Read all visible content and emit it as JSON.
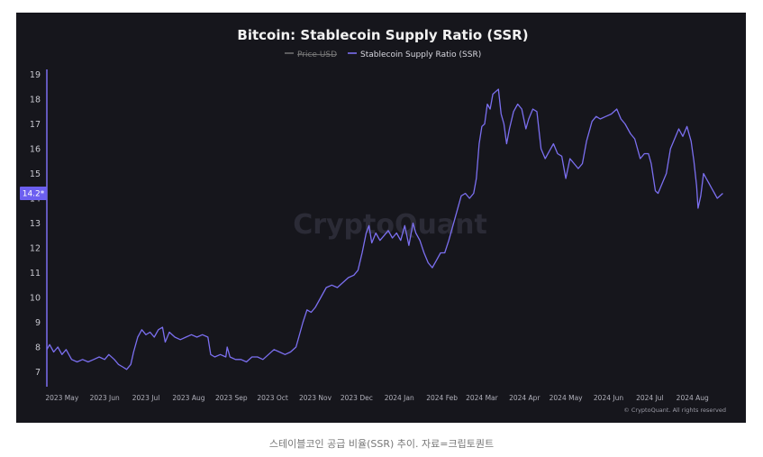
{
  "chart_data": {
    "type": "line",
    "title": "Bitcoin: Stablecoin Supply Ratio (SSR)",
    "legend": [
      {
        "name": "Price USD",
        "color": "#888888",
        "hidden": true
      },
      {
        "name": "Stablecoin Supply Ratio (SSR)",
        "color": "#7b6ff0",
        "hidden": false
      }
    ],
    "legend_position": "top-center",
    "watermark": "CryptoQuant",
    "copyright": "© CryptoQuant. All rights reserved",
    "current_value_label": "14.2*",
    "current_value": 14.2,
    "y_ticks": [
      7,
      8,
      9,
      10,
      11,
      12,
      13,
      14,
      15,
      16,
      17,
      18,
      19
    ],
    "ylim": [
      6.4,
      19.2
    ],
    "x_ticks": [
      "2023 May",
      "2023 Jun",
      "2023 Jul",
      "2023 Aug",
      "2023 Sep",
      "2023 Oct",
      "2023 Nov",
      "2023 Dec",
      "2024 Jan",
      "2024 Feb",
      "2024 Mar",
      "2024 Apr",
      "2024 May",
      "2024 Jun",
      "2024 Jul",
      "2024 Aug"
    ],
    "x_tick_dates": [
      "2023-05-01",
      "2023-06-01",
      "2023-07-01",
      "2023-08-01",
      "2023-09-01",
      "2023-10-01",
      "2023-11-01",
      "2023-12-01",
      "2024-01-01",
      "2024-02-01",
      "2024-03-01",
      "2024-04-01",
      "2024-05-01",
      "2024-06-01",
      "2024-07-01",
      "2024-08-01"
    ],
    "xlim": [
      "2023-04-20",
      "2024-08-28"
    ],
    "grid": false,
    "series": [
      {
        "name": "Stablecoin Supply Ratio (SSR)",
        "color": "#7b6ff0",
        "points": [
          [
            "2023-04-20",
            7.9
          ],
          [
            "2023-04-22",
            8.1
          ],
          [
            "2023-04-25",
            7.8
          ],
          [
            "2023-04-28",
            8.0
          ],
          [
            "2023-05-01",
            7.7
          ],
          [
            "2023-05-04",
            7.9
          ],
          [
            "2023-05-08",
            7.5
          ],
          [
            "2023-05-12",
            7.4
          ],
          [
            "2023-05-16",
            7.5
          ],
          [
            "2023-05-20",
            7.4
          ],
          [
            "2023-05-24",
            7.5
          ],
          [
            "2023-05-28",
            7.6
          ],
          [
            "2023-06-01",
            7.5
          ],
          [
            "2023-06-04",
            7.7
          ],
          [
            "2023-06-08",
            7.5
          ],
          [
            "2023-06-11",
            7.3
          ],
          [
            "2023-06-14",
            7.2
          ],
          [
            "2023-06-17",
            7.1
          ],
          [
            "2023-06-20",
            7.3
          ],
          [
            "2023-06-22",
            7.8
          ],
          [
            "2023-06-25",
            8.4
          ],
          [
            "2023-06-28",
            8.7
          ],
          [
            "2023-07-01",
            8.5
          ],
          [
            "2023-07-04",
            8.6
          ],
          [
            "2023-07-07",
            8.4
          ],
          [
            "2023-07-10",
            8.7
          ],
          [
            "2023-07-13",
            8.8
          ],
          [
            "2023-07-15",
            8.2
          ],
          [
            "2023-07-18",
            8.6
          ],
          [
            "2023-07-22",
            8.4
          ],
          [
            "2023-07-26",
            8.3
          ],
          [
            "2023-07-30",
            8.4
          ],
          [
            "2023-08-03",
            8.5
          ],
          [
            "2023-08-07",
            8.4
          ],
          [
            "2023-08-11",
            8.5
          ],
          [
            "2023-08-15",
            8.4
          ],
          [
            "2023-08-17",
            7.7
          ],
          [
            "2023-08-20",
            7.6
          ],
          [
            "2023-08-24",
            7.7
          ],
          [
            "2023-08-28",
            7.6
          ],
          [
            "2023-08-29",
            8.0
          ],
          [
            "2023-08-31",
            7.6
          ],
          [
            "2023-09-04",
            7.5
          ],
          [
            "2023-09-08",
            7.5
          ],
          [
            "2023-09-12",
            7.4
          ],
          [
            "2023-09-16",
            7.6
          ],
          [
            "2023-09-20",
            7.6
          ],
          [
            "2023-09-24",
            7.5
          ],
          [
            "2023-09-28",
            7.7
          ],
          [
            "2023-10-02",
            7.9
          ],
          [
            "2023-10-06",
            7.8
          ],
          [
            "2023-10-10",
            7.7
          ],
          [
            "2023-10-14",
            7.8
          ],
          [
            "2023-10-18",
            8.0
          ],
          [
            "2023-10-20",
            8.4
          ],
          [
            "2023-10-23",
            9.0
          ],
          [
            "2023-10-26",
            9.5
          ],
          [
            "2023-10-29",
            9.4
          ],
          [
            "2023-11-01",
            9.6
          ],
          [
            "2023-11-05",
            10.0
          ],
          [
            "2023-11-09",
            10.4
          ],
          [
            "2023-11-13",
            10.5
          ],
          [
            "2023-11-17",
            10.4
          ],
          [
            "2023-11-21",
            10.6
          ],
          [
            "2023-11-25",
            10.8
          ],
          [
            "2023-11-29",
            10.9
          ],
          [
            "2023-12-02",
            11.1
          ],
          [
            "2023-12-05",
            11.8
          ],
          [
            "2023-12-08",
            12.6
          ],
          [
            "2023-12-10",
            12.9
          ],
          [
            "2023-12-12",
            12.2
          ],
          [
            "2023-12-15",
            12.6
          ],
          [
            "2023-12-18",
            12.3
          ],
          [
            "2023-12-21",
            12.5
          ],
          [
            "2023-12-24",
            12.7
          ],
          [
            "2023-12-27",
            12.4
          ],
          [
            "2023-12-30",
            12.6
          ],
          [
            "2024-01-02",
            12.3
          ],
          [
            "2024-01-05",
            12.9
          ],
          [
            "2024-01-08",
            12.1
          ],
          [
            "2024-01-11",
            13.0
          ],
          [
            "2024-01-13",
            12.6
          ],
          [
            "2024-01-16",
            12.3
          ],
          [
            "2024-01-19",
            11.8
          ],
          [
            "2024-01-22",
            11.4
          ],
          [
            "2024-01-25",
            11.2
          ],
          [
            "2024-01-28",
            11.5
          ],
          [
            "2024-01-31",
            11.8
          ],
          [
            "2024-02-03",
            11.8
          ],
          [
            "2024-02-06",
            12.3
          ],
          [
            "2024-02-09",
            12.9
          ],
          [
            "2024-02-12",
            13.5
          ],
          [
            "2024-02-15",
            14.1
          ],
          [
            "2024-02-18",
            14.2
          ],
          [
            "2024-02-21",
            14.0
          ],
          [
            "2024-02-24",
            14.2
          ],
          [
            "2024-02-26",
            14.8
          ],
          [
            "2024-02-28",
            16.2
          ],
          [
            "2024-03-01",
            16.9
          ],
          [
            "2024-03-03",
            17.0
          ],
          [
            "2024-03-05",
            17.8
          ],
          [
            "2024-03-07",
            17.6
          ],
          [
            "2024-03-09",
            18.2
          ],
          [
            "2024-03-11",
            18.3
          ],
          [
            "2024-03-13",
            18.4
          ],
          [
            "2024-03-15",
            17.4
          ],
          [
            "2024-03-17",
            17.0
          ],
          [
            "2024-03-19",
            16.2
          ],
          [
            "2024-03-21",
            16.8
          ],
          [
            "2024-03-24",
            17.5
          ],
          [
            "2024-03-27",
            17.8
          ],
          [
            "2024-03-30",
            17.6
          ],
          [
            "2024-04-02",
            16.8
          ],
          [
            "2024-04-04",
            17.2
          ],
          [
            "2024-04-07",
            17.6
          ],
          [
            "2024-04-10",
            17.5
          ],
          [
            "2024-04-13",
            16.0
          ],
          [
            "2024-04-16",
            15.6
          ],
          [
            "2024-04-19",
            15.9
          ],
          [
            "2024-04-22",
            16.2
          ],
          [
            "2024-04-25",
            15.8
          ],
          [
            "2024-04-28",
            15.7
          ],
          [
            "2024-05-01",
            14.8
          ],
          [
            "2024-05-04",
            15.6
          ],
          [
            "2024-05-07",
            15.4
          ],
          [
            "2024-05-10",
            15.2
          ],
          [
            "2024-05-13",
            15.4
          ],
          [
            "2024-05-16",
            16.3
          ],
          [
            "2024-05-20",
            17.1
          ],
          [
            "2024-05-23",
            17.3
          ],
          [
            "2024-05-26",
            17.2
          ],
          [
            "2024-05-30",
            17.3
          ],
          [
            "2024-06-03",
            17.4
          ],
          [
            "2024-06-07",
            17.6
          ],
          [
            "2024-06-10",
            17.2
          ],
          [
            "2024-06-13",
            17.0
          ],
          [
            "2024-06-17",
            16.6
          ],
          [
            "2024-06-20",
            16.4
          ],
          [
            "2024-06-24",
            15.6
          ],
          [
            "2024-06-27",
            15.8
          ],
          [
            "2024-06-30",
            15.8
          ],
          [
            "2024-07-02",
            15.4
          ],
          [
            "2024-07-05",
            14.3
          ],
          [
            "2024-07-07",
            14.2
          ],
          [
            "2024-07-10",
            14.6
          ],
          [
            "2024-07-13",
            15.0
          ],
          [
            "2024-07-16",
            16.0
          ],
          [
            "2024-07-19",
            16.4
          ],
          [
            "2024-07-22",
            16.8
          ],
          [
            "2024-07-25",
            16.5
          ],
          [
            "2024-07-28",
            16.9
          ],
          [
            "2024-07-31",
            16.3
          ],
          [
            "2024-08-02",
            15.5
          ],
          [
            "2024-08-04",
            14.5
          ],
          [
            "2024-08-05",
            13.6
          ],
          [
            "2024-08-07",
            14.1
          ],
          [
            "2024-08-09",
            15.0
          ],
          [
            "2024-08-11",
            14.8
          ],
          [
            "2024-08-13",
            14.6
          ],
          [
            "2024-08-15",
            14.4
          ],
          [
            "2024-08-17",
            14.2
          ],
          [
            "2024-08-19",
            14.0
          ],
          [
            "2024-08-21",
            14.1
          ],
          [
            "2024-08-23",
            14.2
          ]
        ]
      }
    ]
  },
  "caption": "스테이블코인 공급 비율(SSR) 추이. 자료=크립토퀀트"
}
